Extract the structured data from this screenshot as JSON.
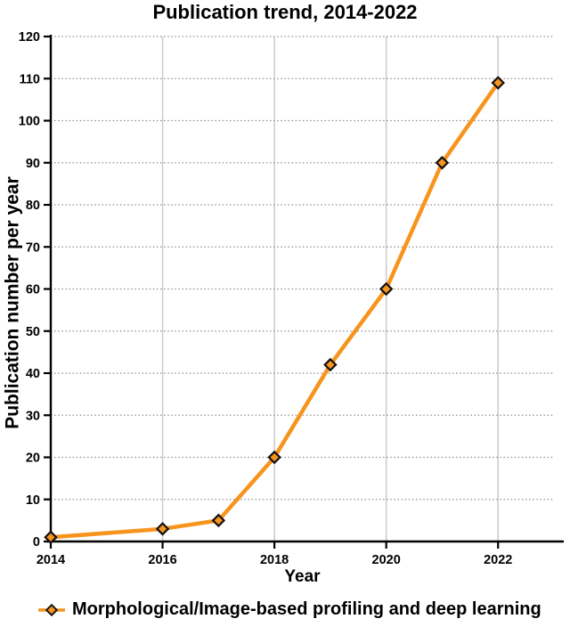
{
  "chart_data": {
    "type": "line",
    "title": "Publication trend, 2014-2022",
    "xlabel": "Year",
    "ylabel": "Publication number per year",
    "series": [
      {
        "name": "Morphological/Image-based profiling and deep learning",
        "x": [
          2014,
          2016,
          2017,
          2018,
          2019,
          2020,
          2021,
          2022
        ],
        "values": [
          1,
          3,
          5,
          20,
          42,
          60,
          90,
          109
        ]
      }
    ],
    "xlim": [
      2014,
      2023
    ],
    "ylim": [
      0,
      120
    ],
    "x_ticks": [
      2014,
      2016,
      2018,
      2020,
      2022
    ],
    "y_ticks": [
      0,
      10,
      20,
      30,
      40,
      50,
      60,
      70,
      80,
      90,
      100,
      110,
      120
    ],
    "grid": {
      "horizontal": "dotted gray lines at every y tick",
      "vertical": "solid light-gray lines at every labeled x tick"
    },
    "legend_position": "bottom-left",
    "marker_shape": "diamond",
    "colors": {
      "line": "#F7941E",
      "marker_fill": "#F7941E",
      "marker_stroke": "#111111",
      "axis": "#000000",
      "h_grid": "#8f8f8f",
      "v_grid": "#c8c8c8",
      "text": "#000000",
      "background": "#ffffff"
    }
  }
}
